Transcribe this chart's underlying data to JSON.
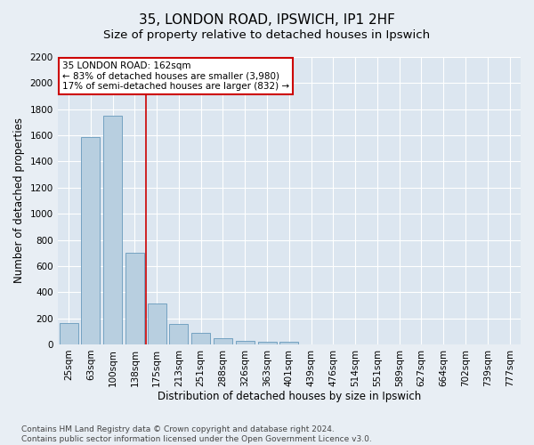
{
  "title": "35, LONDON ROAD, IPSWICH, IP1 2HF",
  "subtitle": "Size of property relative to detached houses in Ipswich",
  "xlabel": "Distribution of detached houses by size in Ipswich",
  "ylabel": "Number of detached properties",
  "footnote1": "Contains HM Land Registry data © Crown copyright and database right 2024.",
  "footnote2": "Contains public sector information licensed under the Open Government Licence v3.0.",
  "categories": [
    "25sqm",
    "63sqm",
    "100sqm",
    "138sqm",
    "175sqm",
    "213sqm",
    "251sqm",
    "288sqm",
    "326sqm",
    "363sqm",
    "401sqm",
    "439sqm",
    "476sqm",
    "514sqm",
    "551sqm",
    "589sqm",
    "627sqm",
    "664sqm",
    "702sqm",
    "739sqm",
    "777sqm"
  ],
  "values": [
    160,
    1590,
    1750,
    700,
    310,
    155,
    85,
    50,
    30,
    20,
    20,
    0,
    0,
    0,
    0,
    0,
    0,
    0,
    0,
    0,
    0
  ],
  "bar_color": "#b8cfe0",
  "bar_edge_color": "#6699bb",
  "vline_x": 3.5,
  "vline_color": "#cc0000",
  "annotation_line1": "35 LONDON ROAD: 162sqm",
  "annotation_line2": "← 83% of detached houses are smaller (3,980)",
  "annotation_line3": "17% of semi-detached houses are larger (832) →",
  "annotation_box_color": "#cc0000",
  "ylim": [
    0,
    2200
  ],
  "yticks": [
    0,
    200,
    400,
    600,
    800,
    1000,
    1200,
    1400,
    1600,
    1800,
    2000,
    2200
  ],
  "bg_color": "#e8eef4",
  "plot_bg_color": "#dce6f0",
  "grid_color": "#ffffff",
  "title_fontsize": 11,
  "subtitle_fontsize": 9.5,
  "label_fontsize": 8.5,
  "tick_fontsize": 7.5,
  "footnote_fontsize": 6.5,
  "annotation_fontsize": 7.5
}
